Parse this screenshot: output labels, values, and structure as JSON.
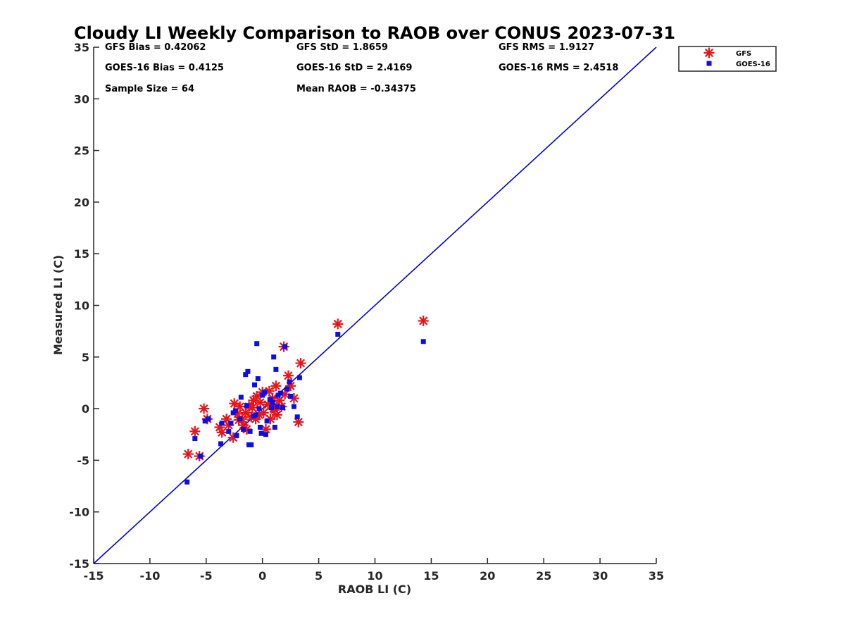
{
  "chart_data": {
    "type": "scatter",
    "title": "Cloudy LI Weekly Comparison to RAOB over CONUS 2023-07-31",
    "xlabel": "RAOB LI (C)",
    "ylabel": "Measured LI (C)",
    "xlim": [
      -15,
      35
    ],
    "ylim": [
      -15,
      35
    ],
    "xticks": [
      -15,
      -10,
      -5,
      0,
      5,
      10,
      15,
      20,
      25,
      30,
      35
    ],
    "yticks": [
      -15,
      -10,
      -5,
      0,
      5,
      10,
      15,
      20,
      25,
      30,
      35
    ],
    "grid": false,
    "legend_position": "top-right",
    "reference_line": {
      "from": [
        -15,
        -15
      ],
      "to": [
        35,
        35
      ],
      "color": "#0000cc"
    },
    "stats": [
      "GFS Bias = 0.42062",
      "GFS StD = 1.8659",
      "GFS RMS = 1.9127",
      "GOES-16 Bias = 0.4125",
      "GOES-16 StD = 2.4169",
      "GOES-16 RMS = 2.4518",
      "Sample Size = 64",
      "Mean RAOB = -0.34375"
    ],
    "series": [
      {
        "name": "GFS",
        "marker": "asterisk",
        "color": "#e8141a",
        "points": [
          [
            -6.6,
            -4.4
          ],
          [
            -6.0,
            -2.2
          ],
          [
            -5.6,
            -4.6
          ],
          [
            -5.2,
            0.0
          ],
          [
            -4.9,
            -1.0
          ],
          [
            -3.8,
            -1.8
          ],
          [
            -3.6,
            -2.3
          ],
          [
            -3.2,
            -1.0
          ],
          [
            -3.0,
            -1.6
          ],
          [
            -2.6,
            -2.8
          ],
          [
            -2.5,
            0.5
          ],
          [
            -2.2,
            -0.5
          ],
          [
            -2.0,
            0.2
          ],
          [
            -1.8,
            -1.0
          ],
          [
            -1.7,
            -1.6
          ],
          [
            -1.5,
            -0.4
          ],
          [
            -1.4,
            -2.0
          ],
          [
            -1.2,
            0.2
          ],
          [
            -1.0,
            -0.8
          ],
          [
            -0.8,
            0.8
          ],
          [
            -0.6,
            -1.0
          ],
          [
            -0.5,
            1.2
          ],
          [
            -0.3,
            -0.6
          ],
          [
            -0.2,
            0.6
          ],
          [
            0.0,
            1.6
          ],
          [
            0.1,
            -0.4
          ],
          [
            0.3,
            -2.0
          ],
          [
            0.5,
            0.4
          ],
          [
            0.7,
            -1.0
          ],
          [
            0.9,
            1.0
          ],
          [
            1.0,
            0.0
          ],
          [
            1.2,
            2.2
          ],
          [
            1.3,
            -0.6
          ],
          [
            1.5,
            0.8
          ],
          [
            1.7,
            0.2
          ],
          [
            1.9,
            6.0
          ],
          [
            2.0,
            1.4
          ],
          [
            2.3,
            3.2
          ],
          [
            2.5,
            2.2
          ],
          [
            2.8,
            1.0
          ],
          [
            3.2,
            -1.3
          ],
          [
            3.4,
            4.4
          ],
          [
            6.7,
            8.2
          ],
          [
            14.3,
            8.5
          ],
          [
            -0.9,
            0.1
          ],
          [
            0.6,
            1.7
          ],
          [
            1.1,
            -0.1
          ],
          [
            -2.1,
            -1.1
          ]
        ]
      },
      {
        "name": "GOES-16",
        "marker": "square",
        "color": "#0d0de6",
        "points": [
          [
            -6.7,
            -7.1
          ],
          [
            -6.0,
            -2.9
          ],
          [
            -5.5,
            -4.6
          ],
          [
            -5.1,
            -1.2
          ],
          [
            -4.8,
            -1.0
          ],
          [
            -3.7,
            -3.4
          ],
          [
            -3.6,
            -1.4
          ],
          [
            -3.0,
            -2.2
          ],
          [
            -2.8,
            -1.4
          ],
          [
            -2.4,
            -0.2
          ],
          [
            -2.3,
            -2.6
          ],
          [
            -2.0,
            -1.0
          ],
          [
            -1.9,
            1.1
          ],
          [
            -1.7,
            -2.0
          ],
          [
            -1.5,
            3.3
          ],
          [
            -1.3,
            3.6
          ],
          [
            -1.2,
            -3.5
          ],
          [
            -1.1,
            -2.2
          ],
          [
            -1.0,
            -3.5
          ],
          [
            -0.8,
            -0.7
          ],
          [
            -0.7,
            2.3
          ],
          [
            -0.5,
            6.3
          ],
          [
            -0.4,
            2.9
          ],
          [
            -0.3,
            0.0
          ],
          [
            -0.2,
            -1.8
          ],
          [
            -0.1,
            -2.4
          ],
          [
            0.0,
            1.3
          ],
          [
            0.2,
            1.6
          ],
          [
            0.3,
            -2.5
          ],
          [
            0.4,
            -1.2
          ],
          [
            0.7,
            0.9
          ],
          [
            0.8,
            0.1
          ],
          [
            1.0,
            5.0
          ],
          [
            1.1,
            -1.8
          ],
          [
            1.2,
            3.8
          ],
          [
            1.3,
            0.2
          ],
          [
            1.6,
            1.5
          ],
          [
            1.8,
            0.1
          ],
          [
            2.0,
            6.0
          ],
          [
            2.2,
            1.9
          ],
          [
            2.4,
            2.6
          ],
          [
            2.5,
            1.2
          ],
          [
            2.8,
            0.2
          ],
          [
            3.1,
            -0.8
          ],
          [
            3.3,
            3.0
          ],
          [
            6.7,
            7.2
          ],
          [
            14.3,
            6.5
          ],
          [
            -1.4,
            0.3
          ],
          [
            0.9,
            0.6
          ],
          [
            1.4,
            1.3
          ],
          [
            -0.6,
            -0.6
          ],
          [
            -2.6,
            -0.4
          ]
        ]
      }
    ]
  }
}
